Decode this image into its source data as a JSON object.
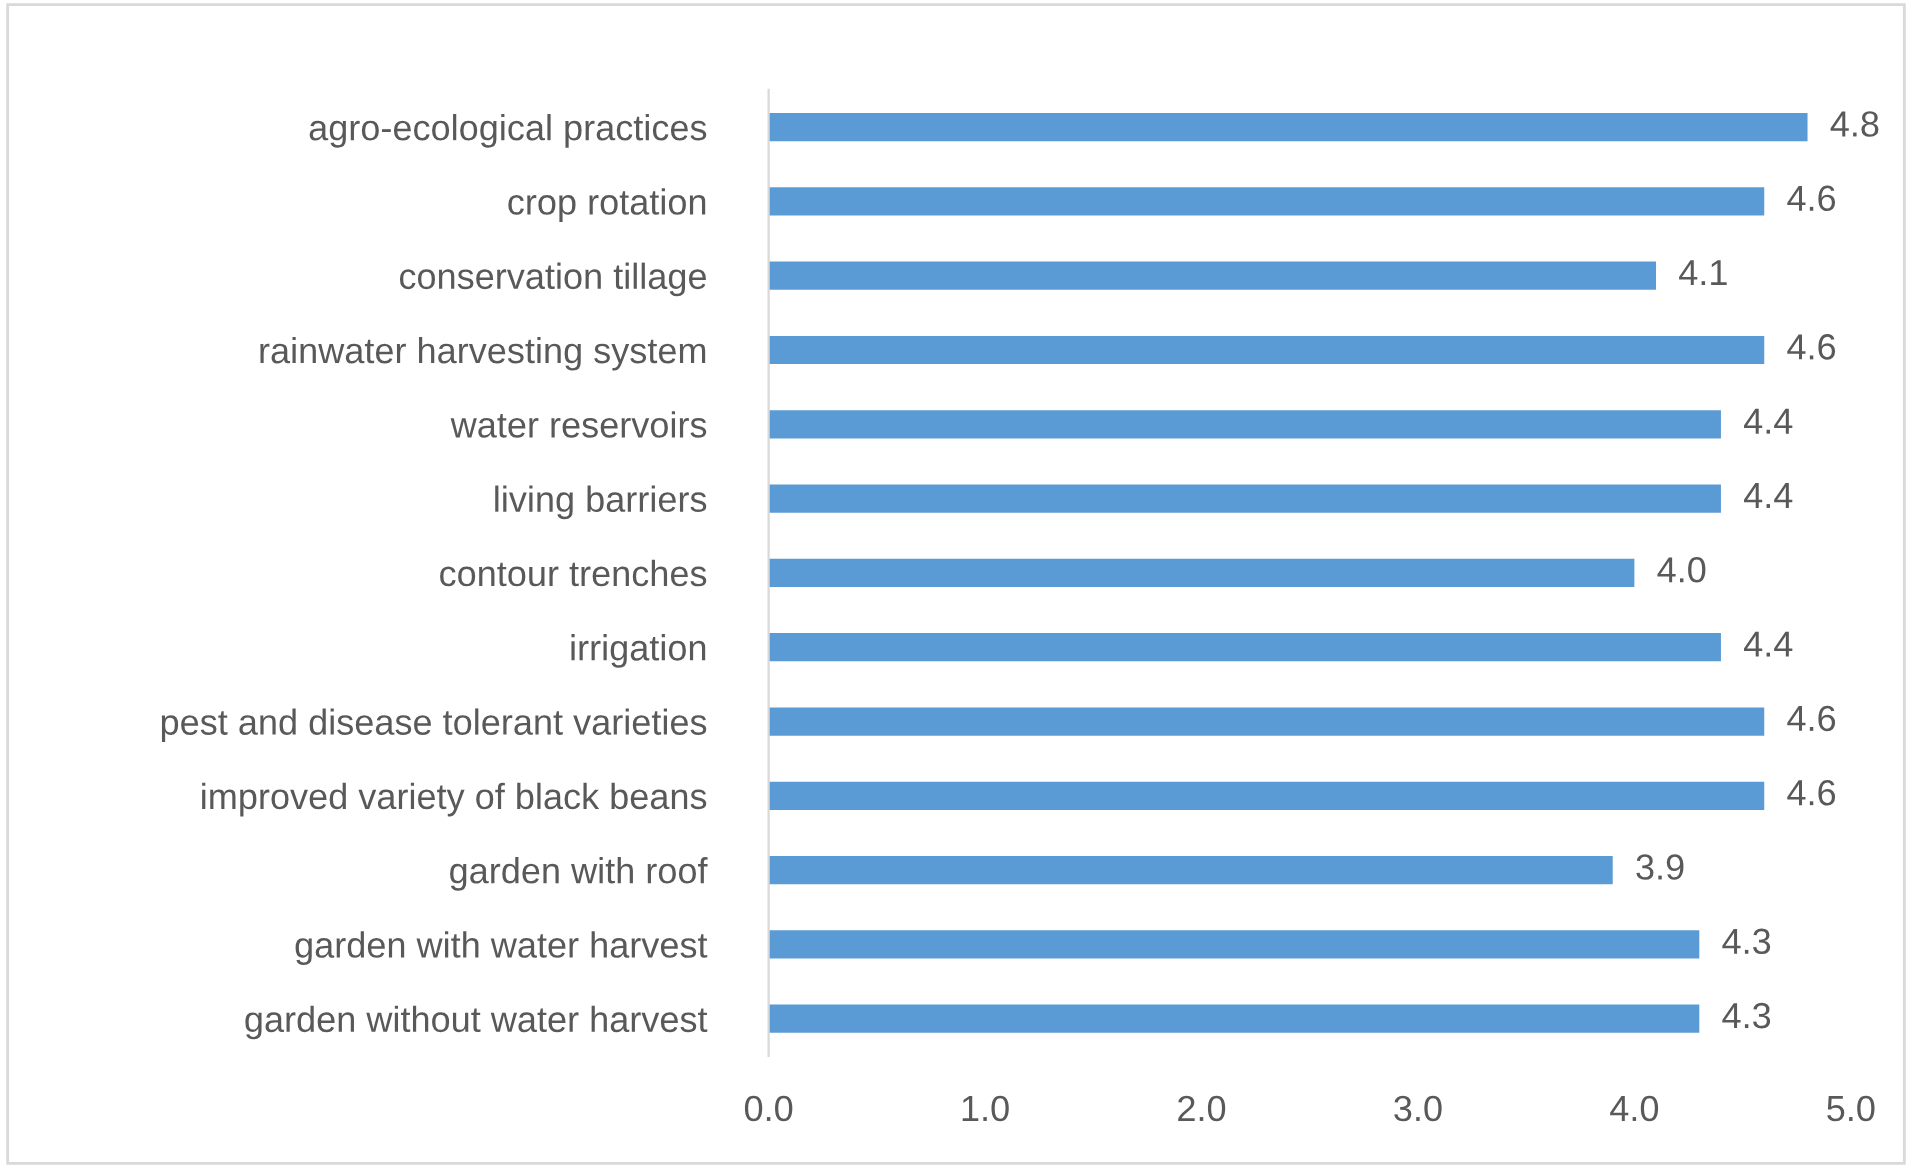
{
  "chart_data": {
    "type": "bar",
    "orientation": "horizontal",
    "categories": [
      "agro-ecological practices",
      "crop rotation",
      "conservation tillage",
      "rainwater harvesting system",
      "water reservoirs",
      "living barriers",
      "contour trenches",
      "irrigation",
      "pest and disease tolerant varieties",
      "improved variety of black beans",
      "garden with roof",
      "garden with water harvest",
      "garden without water harvest"
    ],
    "values": [
      4.8,
      4.6,
      4.1,
      4.6,
      4.4,
      4.4,
      4.0,
      4.4,
      4.6,
      4.6,
      3.9,
      4.3,
      4.3
    ],
    "value_labels": [
      "4.8",
      "4.6",
      "4.1",
      "4.6",
      "4.4",
      "4.4",
      "4.0",
      "4.4",
      "4.6",
      "4.6",
      "3.9",
      "4.3",
      "4.3"
    ],
    "color": "#5b9bd5",
    "xlim": [
      0,
      5
    ],
    "xticks": [
      {
        "value": 0,
        "label": "0.0"
      },
      {
        "value": 1,
        "label": "1.0"
      },
      {
        "value": 2,
        "label": "2.0"
      },
      {
        "value": 3,
        "label": "3.0"
      },
      {
        "value": 4,
        "label": "4.0"
      },
      {
        "value": 5,
        "label": "5.0"
      }
    ],
    "grid": false,
    "legend": false
  }
}
